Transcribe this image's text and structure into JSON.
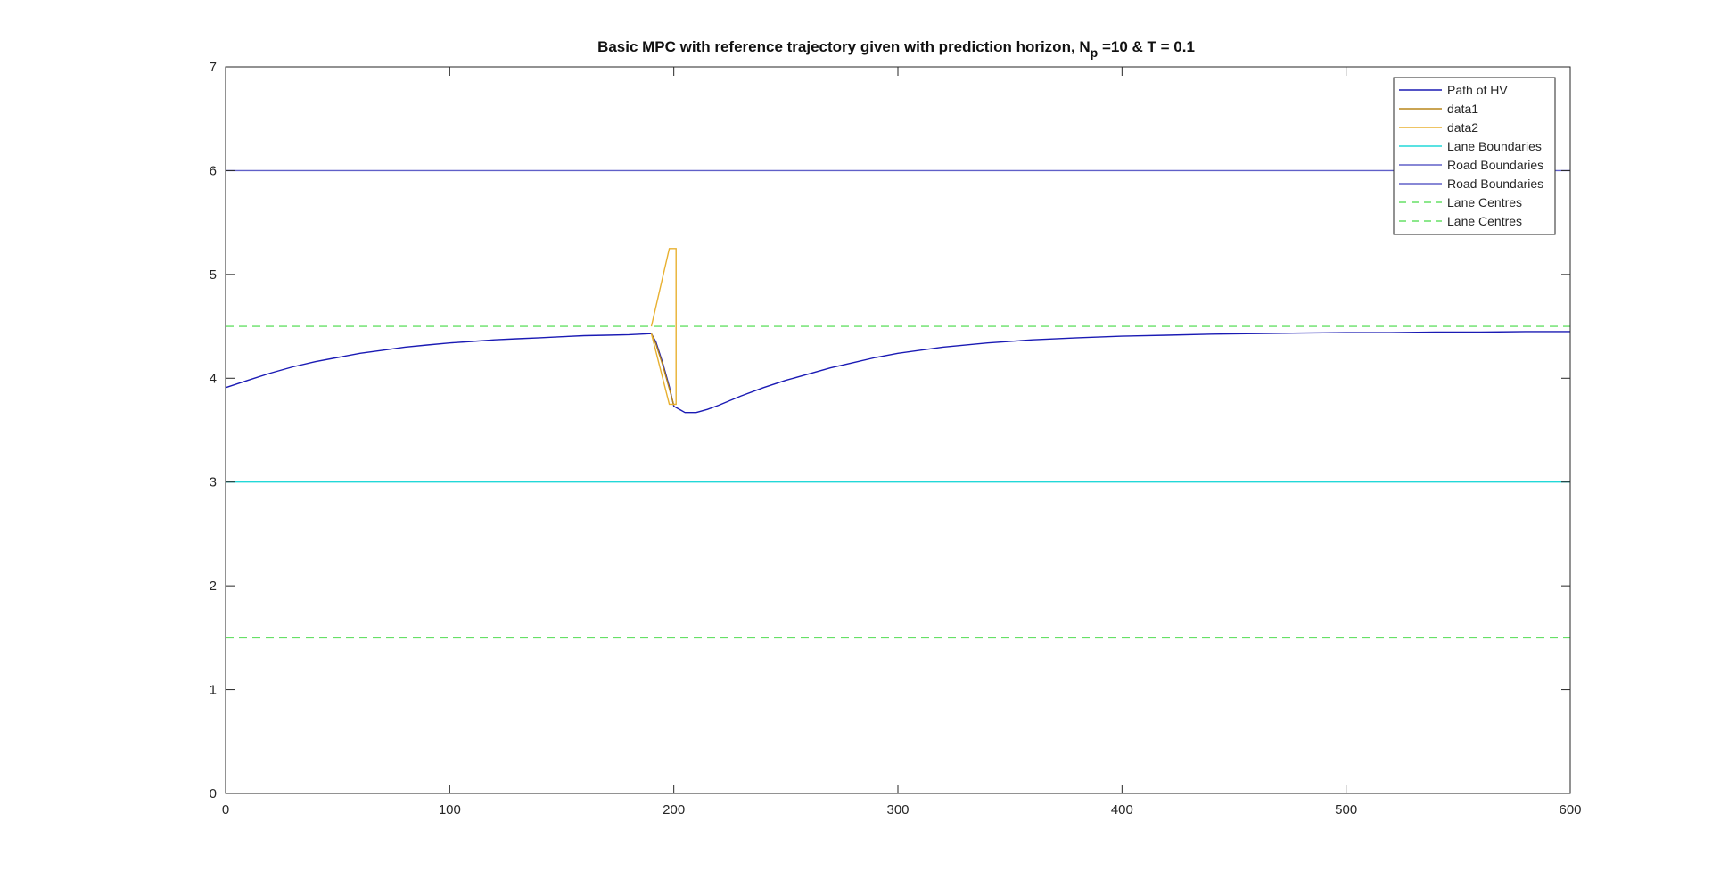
{
  "chart_data": {
    "type": "line",
    "title_main": "Basic MPC with reference trajectory given with prediction horizon, N",
    "title_sub": "p",
    "title_tail": " =10 & T = 0.1",
    "xlim": [
      0,
      600
    ],
    "ylim": [
      0,
      7
    ],
    "xticks": [
      0,
      100,
      200,
      300,
      400,
      500,
      600
    ],
    "yticks": [
      0,
      1,
      2,
      3,
      4,
      5,
      6,
      7
    ],
    "grid": false,
    "legend_position": "top-right",
    "series": [
      {
        "name": "Path of HV",
        "color": "#1a1ab4",
        "dash": "solid",
        "x": [
          0,
          10,
          20,
          30,
          40,
          50,
          60,
          70,
          80,
          90,
          100,
          110,
          120,
          130,
          140,
          150,
          160,
          170,
          180,
          190,
          192,
          195,
          198,
          200,
          205,
          210,
          215,
          220,
          230,
          240,
          250,
          260,
          270,
          280,
          290,
          300,
          320,
          340,
          360,
          380,
          400,
          420,
          440,
          460,
          480,
          500,
          520,
          540,
          560,
          580,
          600
        ],
        "y": [
          3.91,
          3.98,
          4.05,
          4.11,
          4.16,
          4.2,
          4.24,
          4.27,
          4.3,
          4.32,
          4.34,
          4.355,
          4.37,
          4.38,
          4.39,
          4.4,
          4.41,
          4.415,
          4.42,
          4.43,
          4.35,
          4.15,
          3.92,
          3.73,
          3.67,
          3.67,
          3.7,
          3.74,
          3.83,
          3.91,
          3.98,
          4.04,
          4.1,
          4.15,
          4.2,
          4.24,
          4.3,
          4.34,
          4.37,
          4.39,
          4.405,
          4.415,
          4.425,
          4.43,
          4.435,
          4.44,
          4.44,
          4.445,
          4.445,
          4.45,
          4.45
        ]
      },
      {
        "name": "data1",
        "color": "#b8861a",
        "dash": "solid",
        "x": [
          190,
          192,
          195,
          198,
          200
        ],
        "y": [
          4.43,
          4.33,
          4.13,
          3.9,
          3.74
        ]
      },
      {
        "name": "data2",
        "color": "#e8b030",
        "dash": "solid",
        "x": [
          190,
          198,
          201,
          201,
          198,
          190
        ],
        "y": [
          4.5,
          5.25,
          5.25,
          3.75,
          3.75,
          4.43
        ]
      },
      {
        "name": "Lane Boundaries",
        "color": "#22d8d8",
        "dash": "solid",
        "x": [
          0,
          600
        ],
        "y": [
          3,
          3
        ]
      },
      {
        "name": "Road Boundaries",
        "color": "#6060c8",
        "dash": "solid",
        "x": [
          0,
          600
        ],
        "y": [
          6,
          6
        ]
      },
      {
        "name": "Road Boundaries",
        "color": "#6060c8",
        "dash": "solid",
        "x": [
          0,
          600
        ],
        "y": [
          0,
          0
        ]
      },
      {
        "name": "Lane Centres",
        "color": "#66e066",
        "dash": "dashed",
        "x": [
          0,
          600
        ],
        "y": [
          4.5,
          4.5
        ]
      },
      {
        "name": "Lane Centres",
        "color": "#66e066",
        "dash": "dashed",
        "x": [
          0,
          600
        ],
        "y": [
          1.5,
          1.5
        ]
      }
    ]
  }
}
